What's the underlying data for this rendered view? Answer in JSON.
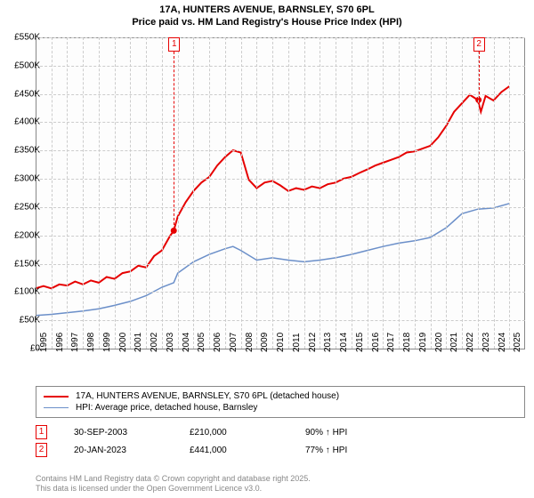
{
  "title_line1": "17A, HUNTERS AVENUE, BARNSLEY, S70 6PL",
  "title_line2": "Price paid vs. HM Land Registry's House Price Index (HPI)",
  "chart": {
    "type": "line",
    "background_color": "#fdfdfd",
    "grid_color": "#cccccc",
    "axis_color": "#888888",
    "xlim": [
      1995,
      2026
    ],
    "ylim": [
      0,
      550
    ],
    "xticks": [
      1995,
      1996,
      1997,
      1998,
      1999,
      2000,
      2001,
      2002,
      2003,
      2004,
      2005,
      2006,
      2007,
      2008,
      2009,
      2010,
      2011,
      2012,
      2013,
      2014,
      2015,
      2016,
      2017,
      2018,
      2019,
      2020,
      2021,
      2022,
      2023,
      2024,
      2025
    ],
    "yticks": [
      0,
      50,
      100,
      150,
      200,
      250,
      300,
      350,
      400,
      450,
      500,
      550
    ],
    "ytick_labels": [
      "£0",
      "£50K",
      "£100K",
      "£150K",
      "£200K",
      "£250K",
      "£300K",
      "£350K",
      "£400K",
      "£450K",
      "£500K",
      "£550K"
    ],
    "series": [
      {
        "name": "property",
        "color": "#e60000",
        "width": 2,
        "data": [
          [
            1995,
            108
          ],
          [
            1995.5,
            112
          ],
          [
            1996,
            108
          ],
          [
            1996.5,
            115
          ],
          [
            1997,
            113
          ],
          [
            1997.5,
            120
          ],
          [
            1998,
            115
          ],
          [
            1998.5,
            122
          ],
          [
            1999,
            118
          ],
          [
            1999.5,
            128
          ],
          [
            2000,
            125
          ],
          [
            2000.5,
            135
          ],
          [
            2001,
            138
          ],
          [
            2001.5,
            148
          ],
          [
            2002,
            145
          ],
          [
            2002.5,
            165
          ],
          [
            2003,
            175
          ],
          [
            2003.5,
            200
          ],
          [
            2003.75,
            210
          ],
          [
            2004,
            235
          ],
          [
            2004.5,
            260
          ],
          [
            2005,
            280
          ],
          [
            2005.5,
            295
          ],
          [
            2006,
            305
          ],
          [
            2006.5,
            325
          ],
          [
            2007,
            340
          ],
          [
            2007.5,
            352
          ],
          [
            2008,
            348
          ],
          [
            2008.5,
            300
          ],
          [
            2009,
            285
          ],
          [
            2009.5,
            295
          ],
          [
            2010,
            298
          ],
          [
            2010.5,
            290
          ],
          [
            2011,
            280
          ],
          [
            2011.5,
            285
          ],
          [
            2012,
            282
          ],
          [
            2012.5,
            288
          ],
          [
            2013,
            285
          ],
          [
            2013.5,
            292
          ],
          [
            2014,
            295
          ],
          [
            2014.5,
            302
          ],
          [
            2015,
            305
          ],
          [
            2015.5,
            312
          ],
          [
            2016,
            318
          ],
          [
            2016.5,
            325
          ],
          [
            2017,
            330
          ],
          [
            2017.5,
            335
          ],
          [
            2018,
            340
          ],
          [
            2018.5,
            348
          ],
          [
            2019,
            350
          ],
          [
            2019.5,
            355
          ],
          [
            2020,
            360
          ],
          [
            2020.5,
            375
          ],
          [
            2021,
            395
          ],
          [
            2021.5,
            420
          ],
          [
            2022,
            435
          ],
          [
            2022.5,
            450
          ],
          [
            2023,
            441
          ],
          [
            2023.2,
            420
          ],
          [
            2023.5,
            448
          ],
          [
            2024,
            440
          ],
          [
            2024.5,
            455
          ],
          [
            2025,
            465
          ]
        ]
      },
      {
        "name": "hpi",
        "color": "#6b8fc9",
        "width": 1.5,
        "data": [
          [
            1995,
            60
          ],
          [
            1996,
            62
          ],
          [
            1997,
            65
          ],
          [
            1998,
            68
          ],
          [
            1999,
            72
          ],
          [
            2000,
            78
          ],
          [
            2001,
            85
          ],
          [
            2002,
            95
          ],
          [
            2003,
            110
          ],
          [
            2003.75,
            118
          ],
          [
            2004,
            135
          ],
          [
            2005,
            155
          ],
          [
            2006,
            168
          ],
          [
            2007,
            178
          ],
          [
            2007.5,
            182
          ],
          [
            2008,
            175
          ],
          [
            2009,
            158
          ],
          [
            2010,
            162
          ],
          [
            2011,
            158
          ],
          [
            2012,
            155
          ],
          [
            2013,
            158
          ],
          [
            2014,
            162
          ],
          [
            2015,
            168
          ],
          [
            2016,
            175
          ],
          [
            2017,
            182
          ],
          [
            2018,
            188
          ],
          [
            2019,
            192
          ],
          [
            2020,
            198
          ],
          [
            2021,
            215
          ],
          [
            2022,
            240
          ],
          [
            2023,
            248
          ],
          [
            2024,
            250
          ],
          [
            2025,
            258
          ]
        ]
      }
    ],
    "markers": [
      {
        "label": "1",
        "x": 2003.75,
        "y": 210,
        "color": "#e60000"
      },
      {
        "label": "2",
        "x": 2023.05,
        "y": 441,
        "color": "#e60000"
      }
    ]
  },
  "legend": {
    "items": [
      {
        "color": "#e60000",
        "width": 2,
        "label": "17A, HUNTERS AVENUE, BARNSLEY, S70 6PL (detached house)"
      },
      {
        "color": "#6b8fc9",
        "width": 1.5,
        "label": "HPI: Average price, detached house, Barnsley"
      }
    ]
  },
  "transactions": [
    {
      "marker": "1",
      "date": "30-SEP-2003",
      "price": "£210,000",
      "change": "90% ↑ HPI"
    },
    {
      "marker": "2",
      "date": "20-JAN-2023",
      "price": "£441,000",
      "change": "77% ↑ HPI"
    }
  ],
  "footer_line1": "Contains HM Land Registry data © Crown copyright and database right 2025.",
  "footer_line2": "This data is licensed under the Open Government Licence v3.0."
}
